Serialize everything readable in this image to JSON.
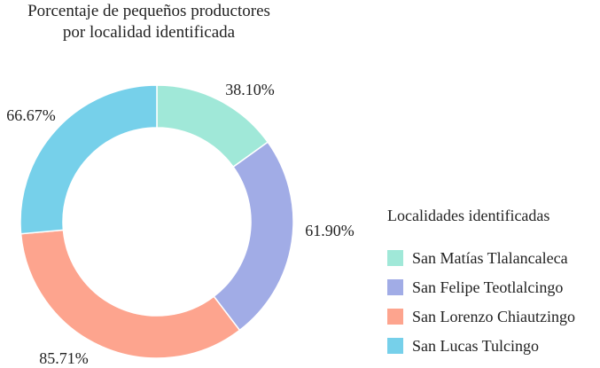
{
  "chart_data": {
    "type": "pie",
    "donut": true,
    "title_lines": [
      "Porcentaje de pequeños productores",
      "por localidad identificada"
    ],
    "slices": [
      {
        "category": "San Matías Tlalancaleca",
        "value": 38.1,
        "label": "38.10%",
        "color": "#a0e8d8"
      },
      {
        "category": "San Felipe Teotlalcingo",
        "value": 61.9,
        "label": "61.90%",
        "color": "#a1ace6"
      },
      {
        "category": "San Lorenzo Chiautzingo",
        "value": 85.71,
        "label": "85.71%",
        "color": "#fda48e"
      },
      {
        "category": "San Lucas Tulcingo",
        "value": 66.67,
        "label": "66.67%",
        "color": "#76d0ea"
      }
    ],
    "legend": {
      "title": "Localidades identificadas",
      "placement": "right"
    }
  }
}
